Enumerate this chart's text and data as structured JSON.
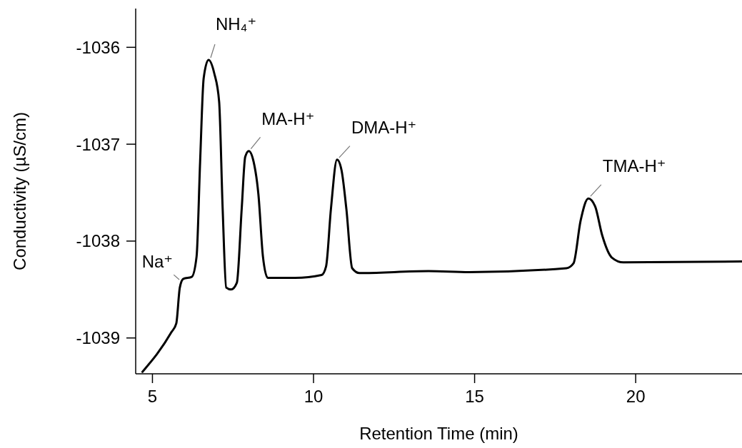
{
  "chart_data": {
    "type": "line",
    "xlabel": "Retention Time (min)",
    "ylabel": "Conductivity (µS/cm)",
    "xlim": [
      4.48,
      23.3
    ],
    "ylim": [
      -1039.37,
      -1035.6
    ],
    "xticks": [
      5,
      10,
      15,
      20
    ],
    "yticks": [
      -1039,
      -1038,
      -1037,
      -1036
    ],
    "grid": false,
    "marker": "none",
    "line_style": "solid",
    "series": [
      {
        "color": "#000000",
        "x": [
          4.69,
          5.59,
          5.74,
          5.85,
          5.96,
          6.22,
          6.37,
          6.48,
          6.59,
          6.74,
          6.92,
          7.07,
          7.18,
          7.29,
          7.44,
          7.62,
          7.77,
          7.88,
          7.99,
          8.14,
          8.29,
          8.43,
          8.58,
          9.43,
          10.25,
          10.39,
          10.54,
          10.73,
          10.87,
          11.02,
          11.2,
          11.43,
          13.57,
          14.83,
          17.85,
          18.07,
          18.29,
          18.53,
          18.74,
          18.96,
          19.26,
          19.62,
          23.3
        ],
        "values": [
          -1039.35,
          -1038.94,
          -1038.85,
          -1038.48,
          -1038.39,
          -1038.37,
          -1038.16,
          -1037.18,
          -1036.32,
          -1036.13,
          -1036.27,
          -1036.56,
          -1037.67,
          -1038.48,
          -1038.5,
          -1038.43,
          -1037.67,
          -1037.13,
          -1037.07,
          -1037.18,
          -1037.52,
          -1038.16,
          -1038.38,
          -1038.38,
          -1038.35,
          -1038.26,
          -1037.67,
          -1037.16,
          -1037.27,
          -1037.67,
          -1038.28,
          -1038.33,
          -1038.31,
          -1038.32,
          -1038.28,
          -1038.23,
          -1037.79,
          -1037.56,
          -1037.64,
          -1037.94,
          -1038.17,
          -1038.22,
          -1038.21
        ]
      }
    ],
    "annotations": [
      {
        "text": "Na⁺",
        "x": 5.9,
        "y": -1038.42
      },
      {
        "text": "NH₄⁺",
        "x": 6.74,
        "y": -1036.13
      },
      {
        "text": "MA-H⁺",
        "x": 7.99,
        "y": -1037.07
      },
      {
        "text": "DMA-H⁺",
        "x": 10.73,
        "y": -1037.16
      },
      {
        "text": "TMA-H⁺",
        "x": 18.53,
        "y": -1037.56
      }
    ]
  }
}
